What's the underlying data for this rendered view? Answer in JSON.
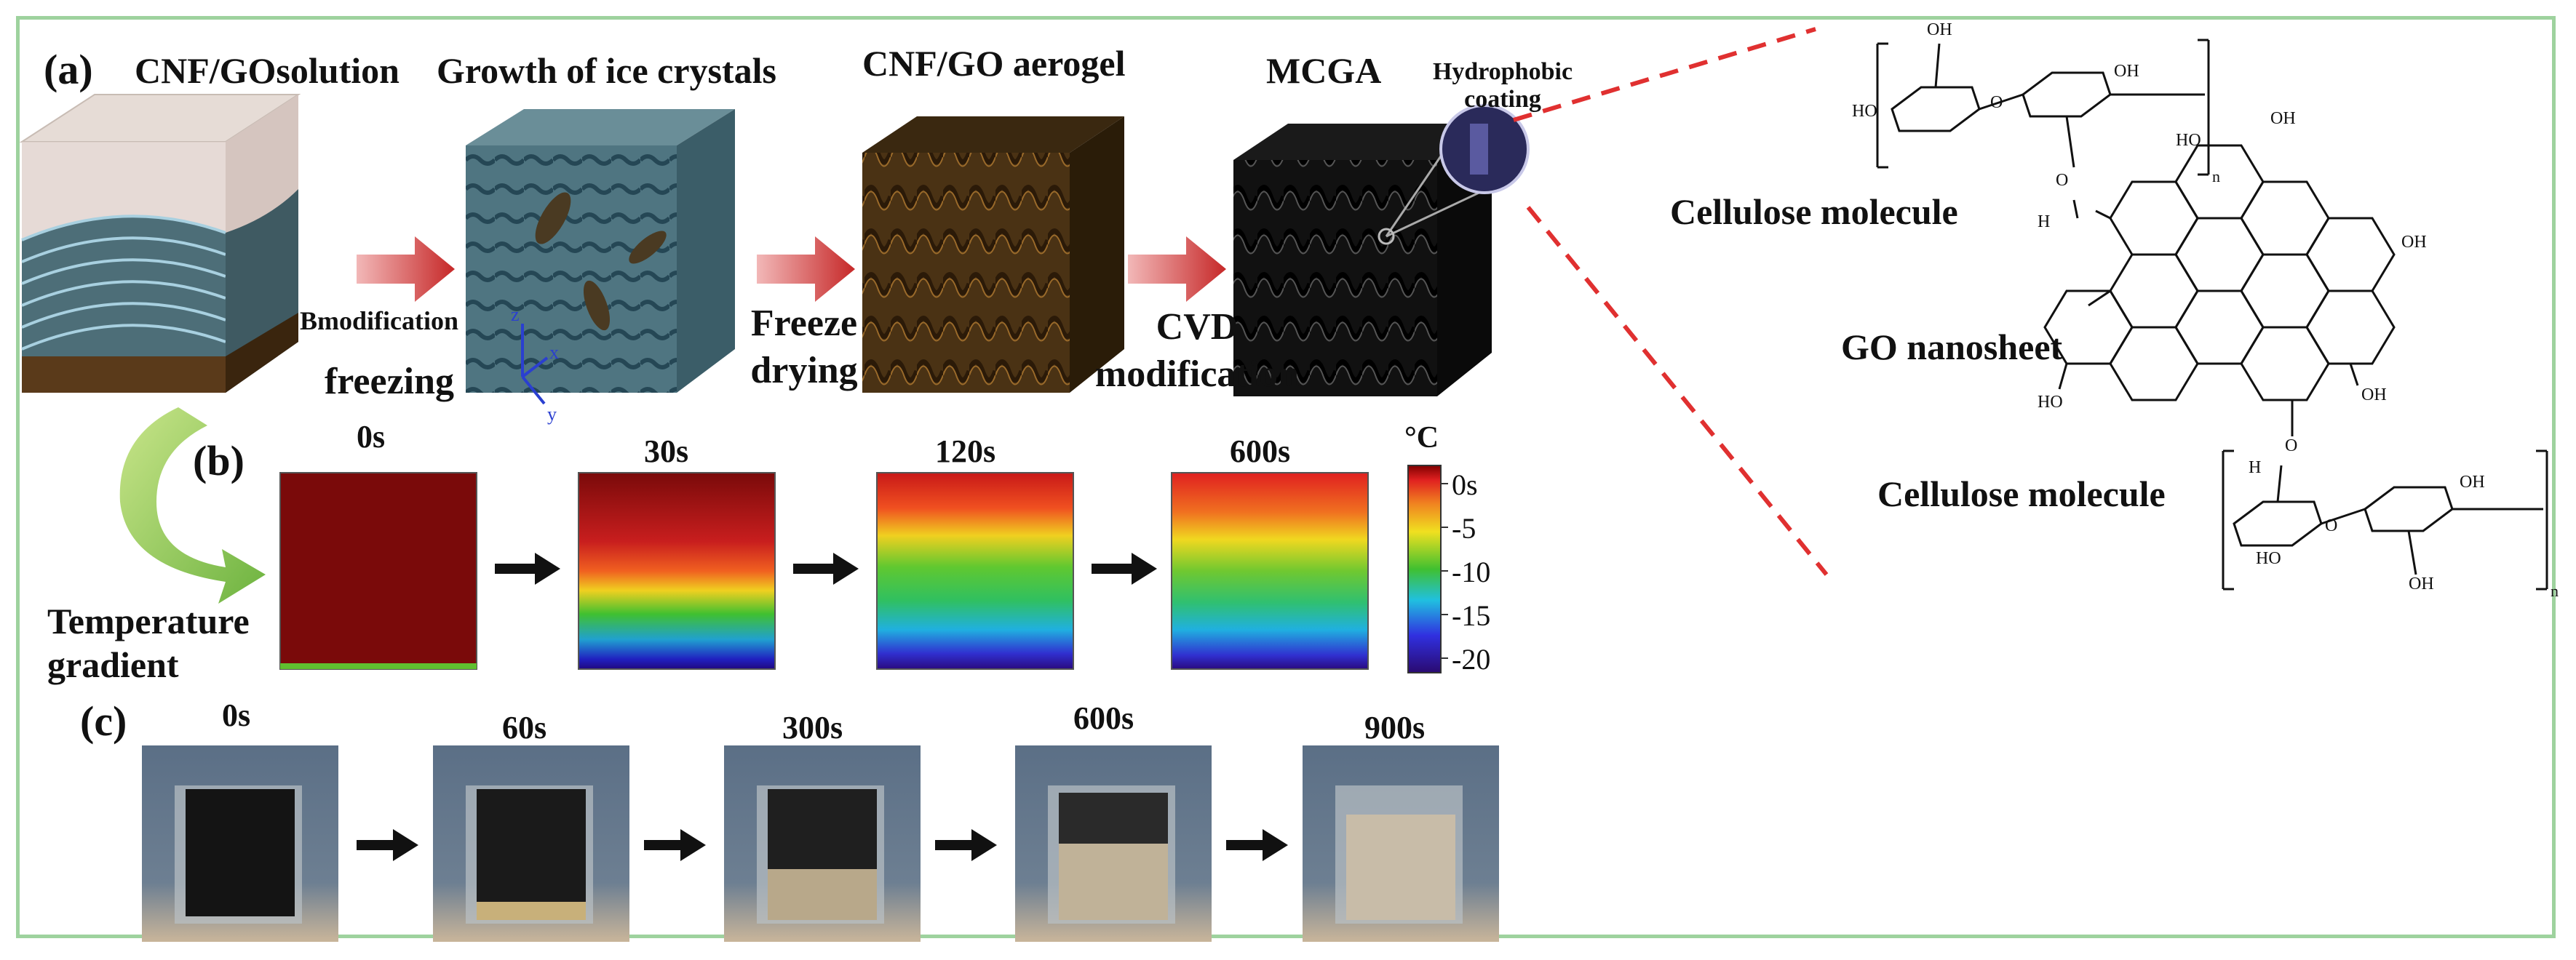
{
  "panel_a": {
    "label": "(a)",
    "steps": [
      "CNF/GOsolution",
      "Growth of ice crystals",
      "CNF/GO aerogel",
      "MCGA"
    ],
    "coating_label_1": "Hydrophobic",
    "coating_label_2": "coating",
    "arrow1_line1": "Bmodification",
    "arrow1_line2": "freezing",
    "arrow2_line1": "Freeze",
    "arrow2_line2": "drying",
    "arrow3_line1": "CVD",
    "arrow3_line2": "modification",
    "axis_z": "z",
    "axis_x": "x",
    "axis_y": "y",
    "gradient_line1": "Temperature",
    "gradient_line2": "gradient"
  },
  "panel_b": {
    "label": "(b)",
    "times": [
      "0s",
      "30s",
      "120s",
      "600s"
    ],
    "colorbar_unit": "°C",
    "colorbar_ticks": [
      "0s",
      "-5",
      "-10",
      "-15",
      "-20"
    ]
  },
  "panel_c": {
    "label": "(c)",
    "times": [
      "0s",
      "60s",
      "300s",
      "600s",
      "900s"
    ]
  },
  "chemistry": {
    "cellulose_top": "Cellulose molecule",
    "go_sheet": "GO nanosheet",
    "cellulose_bottom": "Cellulose molecule",
    "oh": "OH",
    "ho": "HO",
    "o": "O",
    "h": "H",
    "n": "n"
  },
  "colors": {
    "frame": "#9ed29e",
    "arrow_red": "#d33a3a",
    "dashed_red": "#e03030",
    "curve_green": "#8cc63f"
  }
}
